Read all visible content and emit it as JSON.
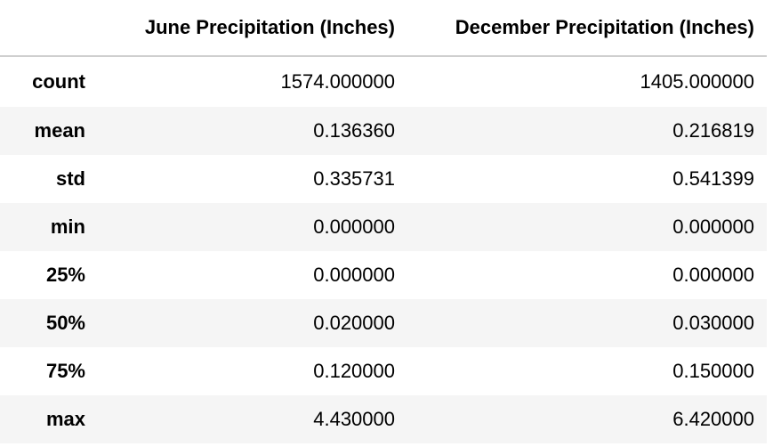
{
  "table": {
    "columns": [
      "June Precipitation (Inches)",
      "December Precipitation (Inches)"
    ],
    "rows": [
      {
        "label": "count",
        "june": "1574.000000",
        "december": "1405.000000"
      },
      {
        "label": "mean",
        "june": "0.136360",
        "december": "0.216819"
      },
      {
        "label": "std",
        "june": "0.335731",
        "december": "0.541399"
      },
      {
        "label": "min",
        "june": "0.000000",
        "december": "0.000000"
      },
      {
        "label": "25%",
        "june": "0.000000",
        "december": "0.000000"
      },
      {
        "label": "50%",
        "june": "0.020000",
        "december": "0.030000"
      },
      {
        "label": "75%",
        "june": "0.120000",
        "december": "0.150000"
      },
      {
        "label": "max",
        "june": "4.430000",
        "december": "6.420000"
      }
    ]
  }
}
